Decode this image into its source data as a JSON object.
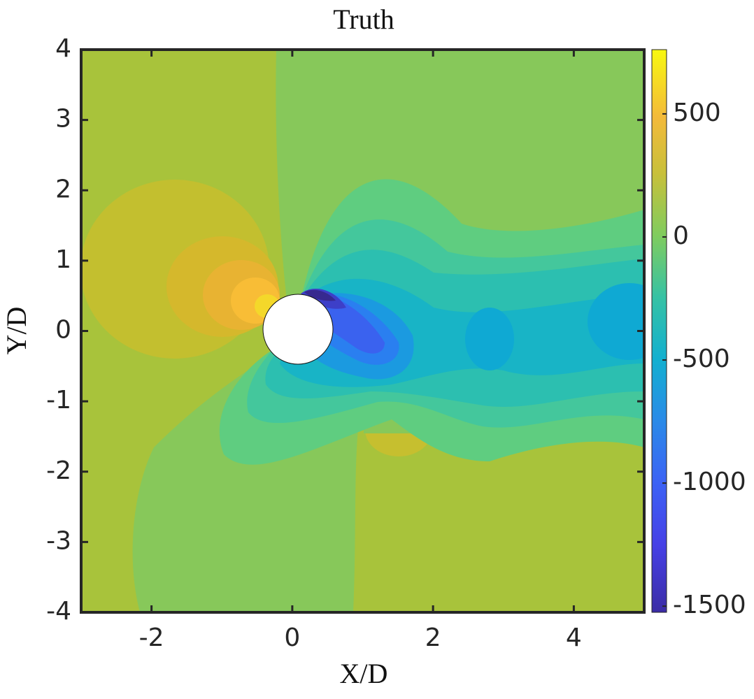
{
  "chart_data": {
    "type": "contour",
    "title": "Truth",
    "x_label": "X/D",
    "y_label": "Y/D",
    "xlim": [
      -3,
      5
    ],
    "xticks": [
      -2,
      0,
      2,
      4
    ],
    "ylim": [
      -4,
      4
    ],
    "yticks": [
      -4,
      -3,
      -2,
      -1,
      0,
      1,
      2,
      3,
      4
    ],
    "colormap": "parula",
    "colorbar": {
      "lim": [
        -1525,
        761
      ],
      "ticks": [
        -1500,
        -1000,
        -500,
        0,
        500
      ]
    }
  }
}
